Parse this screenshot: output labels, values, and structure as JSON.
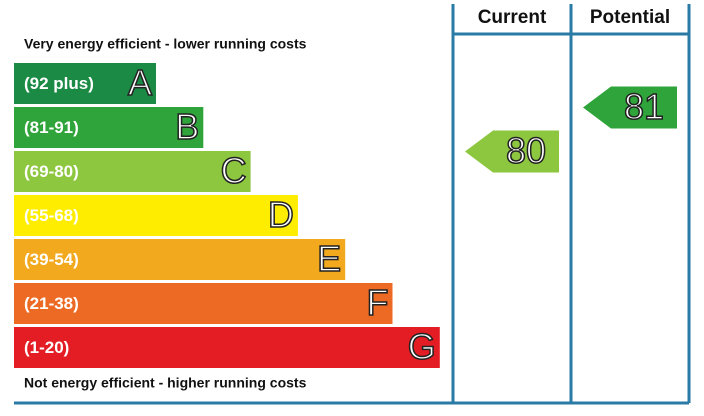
{
  "chart_data": {
    "type": "epc",
    "top_label": "Very energy efficient - lower running costs",
    "bottom_label": "Not energy efficient - higher running costs",
    "bands": [
      {
        "range": "(92 plus)",
        "letter": "A",
        "color": "#1a8a44"
      },
      {
        "range": "(81-91)",
        "letter": "B",
        "color": "#2ea43a"
      },
      {
        "range": "(69-80)",
        "letter": "C",
        "color": "#8dc63f"
      },
      {
        "range": "(55-68)",
        "letter": "D",
        "color": "#ffed00"
      },
      {
        "range": "(39-54)",
        "letter": "E",
        "color": "#f2a91e"
      },
      {
        "range": "(21-38)",
        "letter": "F",
        "color": "#ec6a24"
      },
      {
        "range": "(1-20)",
        "letter": "G",
        "color": "#e31d23"
      }
    ],
    "series": [
      {
        "name": "Current",
        "value": 80
      },
      {
        "name": "Potential",
        "value": 81
      }
    ]
  }
}
